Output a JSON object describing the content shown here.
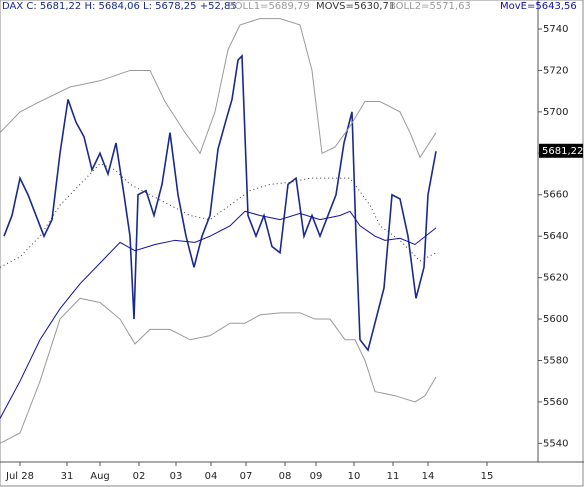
{
  "chart_data": {
    "type": "line",
    "x_categories_note_free": null,
    "xlim": [
      0,
      269
    ],
    "ylim": [
      5531,
      5754
    ],
    "yticks": [
      5540,
      5560,
      5580,
      5600,
      5620,
      5640,
      5660,
      5680,
      5700,
      5720,
      5740
    ],
    "xticks": [
      {
        "value": 10,
        "label": "Jul 28"
      },
      {
        "value": 33.5,
        "label": "31"
      },
      {
        "value": 50,
        "label": "Aug"
      },
      {
        "value": 69.5,
        "label": "02"
      },
      {
        "value": 88,
        "label": "03"
      },
      {
        "value": 105.5,
        "label": "04"
      },
      {
        "value": 123,
        "label": "07"
      },
      {
        "value": 142.5,
        "label": "08"
      },
      {
        "value": 158,
        "label": "09"
      },
      {
        "value": 177,
        "label": "10"
      },
      {
        "value": 196.5,
        "label": "11"
      },
      {
        "value": 214,
        "label": "14"
      },
      {
        "value": 243.5,
        "label": "15"
      }
    ],
    "last_label": {
      "value": 5681.22,
      "label": "5681,22"
    },
    "series": [
      {
        "name": "DAX C: 5681,22 H: 5684,06 L: 5678,25 +52,85",
        "color": "#1a2a8a",
        "style": "solid",
        "x": [
          2,
          6,
          10,
          14,
          18,
          22,
          26,
          30,
          34,
          38,
          42,
          46,
          50,
          54,
          58,
          62,
          65,
          67,
          69,
          73,
          77,
          81,
          85,
          89,
          93,
          97,
          101,
          105,
          109,
          113,
          116,
          119,
          121,
          124,
          128,
          132,
          136,
          140,
          144,
          148,
          152,
          156,
          160,
          164,
          168,
          172,
          176,
          178,
          180,
          184,
          188,
          192,
          196,
          200,
          204,
          208,
          212,
          214,
          218
        ],
        "values": [
          5640,
          5650,
          5668,
          5660,
          5650,
          5640,
          5648,
          5680,
          5706,
          5695,
          5688,
          5672,
          5680,
          5670,
          5685,
          5660,
          5640,
          5600,
          5660,
          5662,
          5650,
          5665,
          5690,
          5660,
          5640,
          5625,
          5640,
          5650,
          5682,
          5696,
          5706,
          5725,
          5727,
          5650,
          5640,
          5650,
          5635,
          5632,
          5665,
          5668,
          5640,
          5650,
          5640,
          5650,
          5660,
          5685,
          5700,
          5640,
          5590,
          5585,
          5600,
          5615,
          5660,
          5658,
          5640,
          5610,
          5625,
          5660,
          5681
        ]
      },
      {
        "name": "BOLL1=5689,79",
        "color": "#9a9a9a",
        "style": "solid",
        "x": [
          0,
          10,
          20,
          35,
          50,
          65,
          75,
          82.5,
          92.5,
          100,
          107.5,
          114,
          120,
          130,
          140,
          150,
          156,
          161,
          167.5,
          175,
          182.5,
          190,
          200,
          205,
          210,
          218
        ],
        "values": [
          5690,
          5700,
          5705,
          5712,
          5715,
          5720,
          5720,
          5705,
          5690,
          5680,
          5700,
          5730,
          5742,
          5745,
          5745,
          5742,
          5720,
          5680,
          5683,
          5693,
          5705,
          5705,
          5700,
          5690,
          5678,
          5690
        ]
      },
      {
        "name": "MOVS=5630,71",
        "color": "#333333",
        "style": "dotted",
        "x": [
          0,
          10,
          20,
          30,
          40,
          50,
          57.5,
          65,
          75,
          85,
          95,
          105,
          115,
          125,
          135,
          145,
          155,
          165,
          175,
          185,
          190,
          200,
          210,
          218
        ],
        "values": [
          5625,
          5630,
          5640,
          5655,
          5665,
          5675,
          5672,
          5665,
          5660,
          5655,
          5650,
          5648,
          5655,
          5662,
          5665,
          5666,
          5668,
          5668,
          5668,
          5655,
          5645,
          5638,
          5628,
          5632
        ]
      },
      {
        "name": "BOLL2=5571,63",
        "color": "#9a9a9a",
        "style": "solid",
        "x": [
          0,
          10,
          20,
          30,
          40,
          50,
          60,
          67.5,
          75,
          85,
          95,
          105,
          115,
          122.5,
          130,
          140,
          150,
          157.5,
          165,
          172.5,
          177.5,
          182.5,
          187.5,
          197.5,
          207.5,
          212.5,
          218
        ],
        "values": [
          5540,
          5545,
          5570,
          5600,
          5610,
          5608,
          5600,
          5588,
          5595,
          5595,
          5590,
          5592,
          5598,
          5598,
          5602,
          5603,
          5603,
          5600,
          5600,
          5590,
          5590,
          5580,
          5565,
          5563,
          5560,
          5563,
          5572
        ]
      },
      {
        "name": "MovE=5643,56",
        "color": "#1010a0",
        "style": "solid",
        "x": [
          0,
          10,
          20,
          30,
          40,
          50,
          60,
          67.5,
          77.5,
          87.5,
          97.5,
          105,
          115,
          122.5,
          130,
          140,
          150,
          160,
          170,
          175,
          180,
          187.5,
          192.5,
          200,
          207.5,
          218
        ],
        "values": [
          5552,
          5570,
          5590,
          5605,
          5617,
          5627,
          5637,
          5633,
          5636,
          5638,
          5637,
          5640,
          5645,
          5652,
          5650,
          5648,
          5651,
          5648,
          5650,
          5652,
          5645,
          5640,
          5638,
          5639,
          5636,
          5644
        ]
      }
    ]
  }
}
